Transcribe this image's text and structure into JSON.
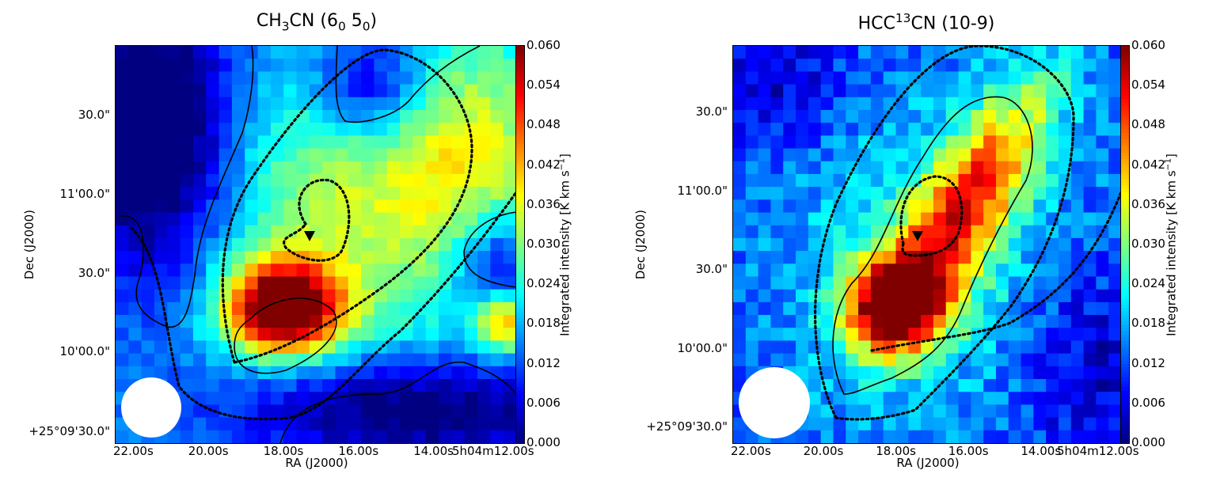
{
  "chart_data": [
    {
      "type": "heatmap",
      "title": "CH3CN (6<sub>0</sub> 5<sub>0</sub>)",
      "title_html": "CH<sub>3</sub>CN (6<sub>0</sub> 5<sub>0</sub>)",
      "xlabel": "RA (J2000)",
      "ylabel": "Dec (J2000)",
      "x_ticks": [
        "22.00s",
        "20.00s",
        "18.00s",
        "16.00s",
        "14.00s",
        "5h04m12.00s"
      ],
      "y_ticks": [
        "+25°09'30.0\"",
        "10'00.0\"",
        "30.0\"",
        "11'00.0\"",
        "30.0\""
      ],
      "colorbar": {
        "label": "Integrated intensity [K km s<sup>-1</sup>]",
        "label_html": "Integrated intensity [K km s<sup>−1</sup>]",
        "range": [
          0.0,
          0.06
        ],
        "ticks": [
          "0.000",
          "0.006",
          "0.012",
          "0.018",
          "0.024",
          "0.030",
          "0.036",
          "0.042",
          "0.048",
          "0.054",
          "0.060"
        ]
      },
      "markers": [
        {
          "shape": "triangle-down",
          "ra_s": 17.2,
          "dec_offset_arcsec": 74
        }
      ],
      "beam": {
        "shape": "circle",
        "fill": "#ffffff"
      }
    },
    {
      "type": "heatmap",
      "title_html": "HCC<sup>13</sup>CN (10-9)",
      "xlabel": "RA (J2000)",
      "ylabel": "Dec (J2000)",
      "x_ticks": [
        "22.00s",
        "20.00s",
        "18.00s",
        "16.00s",
        "14.00s",
        "5h04m12.00s"
      ],
      "y_ticks": [
        "+25°09'30.0\"",
        "10'00.0\"",
        "30.0\"",
        "11'00.0\"",
        "30.0\""
      ],
      "colorbar": {
        "label_html": "Integrated intensity [K km s<sup>−1</sup>]",
        "range": [
          0.0,
          0.06
        ],
        "ticks": [
          "0.000",
          "0.006",
          "0.012",
          "0.018",
          "0.024",
          "0.030",
          "0.036",
          "0.042",
          "0.048",
          "0.054",
          "0.060"
        ]
      },
      "markers": [
        {
          "shape": "triangle-down",
          "ra_s": 17.2,
          "dec_offset_arcsec": 74
        }
      ],
      "beam": {
        "shape": "circle",
        "fill": "#ffffff"
      }
    }
  ],
  "colormap": "jet"
}
